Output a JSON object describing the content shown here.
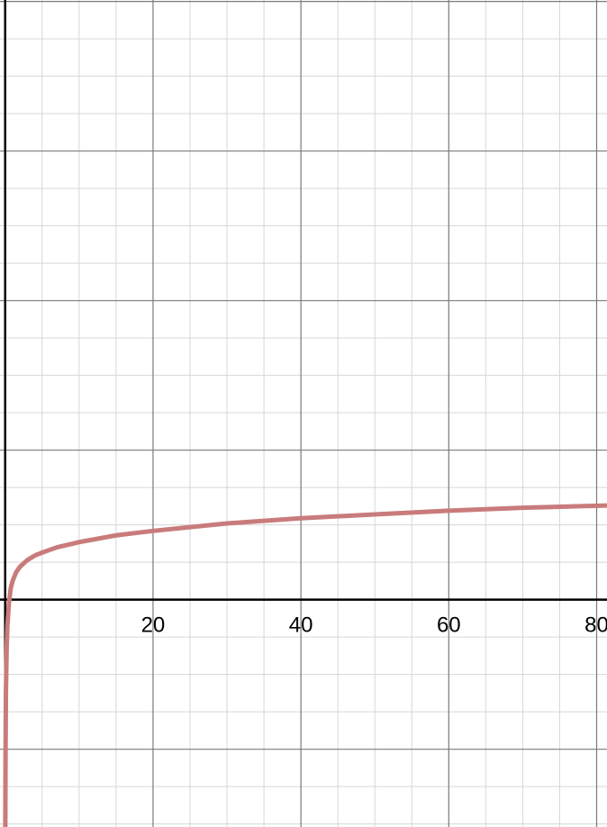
{
  "chart_data": {
    "type": "line",
    "title": "",
    "xlabel": "",
    "ylabel": "",
    "xlim": [
      -0.7,
      81.4
    ],
    "ylim": [
      -30.4,
      80.2
    ],
    "grid": true,
    "major_grid_step": 20,
    "minor_grid_step": 5,
    "x_tick_labels": [
      "20",
      "40",
      "60",
      "80"
    ],
    "y_tick_labels": [],
    "series": [
      {
        "color": "#c97b7b",
        "x": [
          0.02,
          0.05,
          0.1,
          0.2,
          0.3,
          0.5,
          0.75,
          1,
          1.5,
          2,
          3,
          4,
          5,
          7,
          10,
          15,
          20,
          30,
          40,
          50,
          60,
          70,
          81.4
        ],
        "y": [
          -30.4,
          -20.5,
          -12.5,
          -6.5,
          -3.5,
          -0.5,
          1.5,
          2.5,
          3.7,
          4.4,
          5.3,
          5.9,
          6.3,
          7.0,
          7.7,
          8.6,
          9.2,
          10.2,
          10.9,
          11.4,
          11.9,
          12.3,
          12.6
        ]
      }
    ]
  }
}
